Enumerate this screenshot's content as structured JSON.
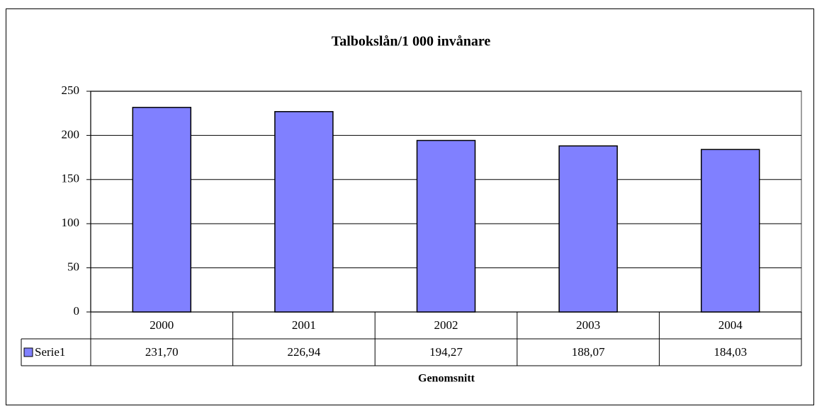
{
  "chart_data": {
    "type": "bar",
    "title": "Talbokslån/1 000 invånare",
    "categories": [
      "2000",
      "2001",
      "2002",
      "2003",
      "2004"
    ],
    "series": [
      {
        "name": "Serie1",
        "color": "#8080ff",
        "values": [
          231.7,
          226.94,
          194.27,
          188.07,
          184.03
        ],
        "value_labels": [
          "231,70",
          "226,94",
          "194,27",
          "188,07",
          "184,03"
        ]
      }
    ],
    "x_label": "Genomsnitt",
    "ylim": [
      0,
      250
    ],
    "yticks": [
      0,
      50,
      100,
      150,
      200,
      250
    ],
    "grid": true,
    "data_table": true
  }
}
